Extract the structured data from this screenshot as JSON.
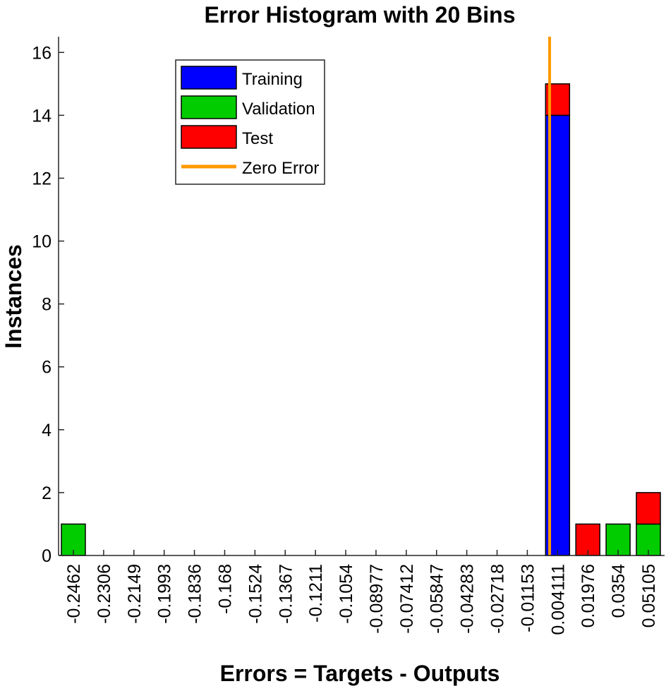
{
  "chart_data": {
    "type": "bar",
    "title": "Error Histogram with 20 Bins",
    "xlabel": "Errors = Targets - Outputs",
    "ylabel": "Instances",
    "ylim": [
      0,
      16.5
    ],
    "yticks": [
      0,
      2,
      4,
      6,
      8,
      10,
      12,
      14,
      16
    ],
    "categories": [
      "-0.2462",
      "-0.2306",
      "-0.2149",
      "-0.1993",
      "-0.1836",
      "-0.168",
      "-0.1524",
      "-0.1367",
      "-0.1211",
      "-0.1054",
      "-0.08977",
      "-0.07412",
      "-0.05847",
      "-0.04283",
      "-0.02718",
      "-0.01153",
      "0.004111",
      "0.01976",
      "0.0354",
      "0.05105"
    ],
    "stacked": true,
    "series": [
      {
        "name": "Training",
        "color": "#0000ff",
        "values": [
          0,
          0,
          0,
          0,
          0,
          0,
          0,
          0,
          0,
          0,
          0,
          0,
          0,
          0,
          0,
          0,
          14,
          0,
          0,
          0
        ]
      },
      {
        "name": "Validation",
        "color": "#00cc00",
        "values": [
          1,
          0,
          0,
          0,
          0,
          0,
          0,
          0,
          0,
          0,
          0,
          0,
          0,
          0,
          0,
          0,
          0,
          0,
          1,
          1
        ]
      },
      {
        "name": "Test",
        "color": "#ff0000",
        "values": [
          0,
          0,
          0,
          0,
          0,
          0,
          0,
          0,
          0,
          0,
          0,
          0,
          0,
          0,
          0,
          0,
          1,
          1,
          0,
          1
        ]
      }
    ],
    "zero_error": {
      "label": "Zero Error",
      "color": "#ff9900",
      "x": 0
    },
    "legend_position": "top-left",
    "grid": false
  }
}
